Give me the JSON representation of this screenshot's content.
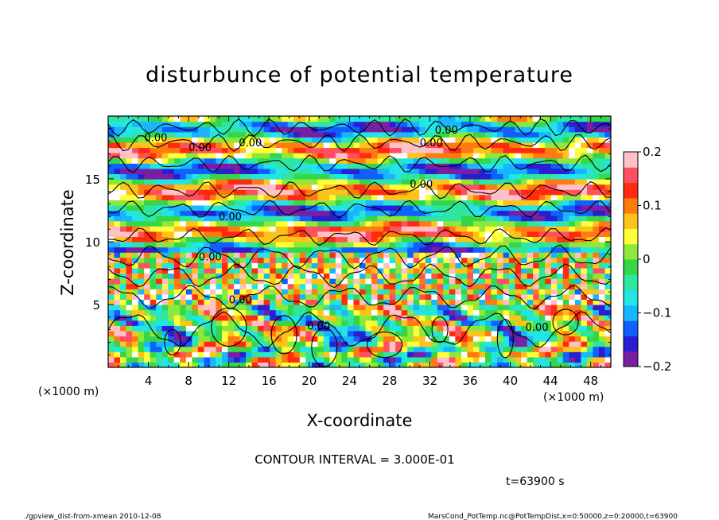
{
  "chart_data": {
    "type": "heatmap",
    "title": "disturbunce of potential temperature",
    "xlabel": "X-coordinate",
    "ylabel": "Z-coordinate",
    "x_unit_left": "(×1000 m)",
    "x_unit_right": "(×1000 m)",
    "xlim": [
      0,
      50
    ],
    "ylim": [
      0,
      20
    ],
    "x_ticks": [
      4,
      8,
      12,
      16,
      20,
      24,
      28,
      32,
      36,
      40,
      44,
      48
    ],
    "y_ticks": [
      5,
      10,
      15
    ],
    "colorbar": {
      "ticks": [
        0.2,
        0.1,
        0,
        -0.1,
        -0.2
      ],
      "tick_labels": [
        "0.2",
        "0.1",
        "0",
        "−0.1",
        "−0.2"
      ],
      "range": [
        -0.2,
        0.2
      ],
      "colors": [
        "#7a1fa2",
        "#2a1fd0",
        "#1060ff",
        "#19b6ff",
        "#22e6e6",
        "#2ee6a0",
        "#36d64a",
        "#8ce93a",
        "#ffff3a",
        "#ffc21a",
        "#ff7a10",
        "#ff2a10",
        "#ff5060",
        "#ffc0c8"
      ]
    },
    "contour_interval_text": "CONTOUR INTERVAL = 3.000E-01",
    "contour_labels": [
      "0.00",
      "0.00",
      "0.00",
      "0.00",
      "0.00",
      "0.00",
      "0.00",
      "0.00",
      "0.00",
      "0.00",
      "0.00"
    ],
    "time_text": "t=63900 s",
    "grid": false
  },
  "footer": {
    "left": "./gpview_dist-from-xmean   2010-12-08",
    "right": "MarsCond_PotTemp.nc@PotTempDist,x=0:50000,z=0:20000,t=63900"
  }
}
